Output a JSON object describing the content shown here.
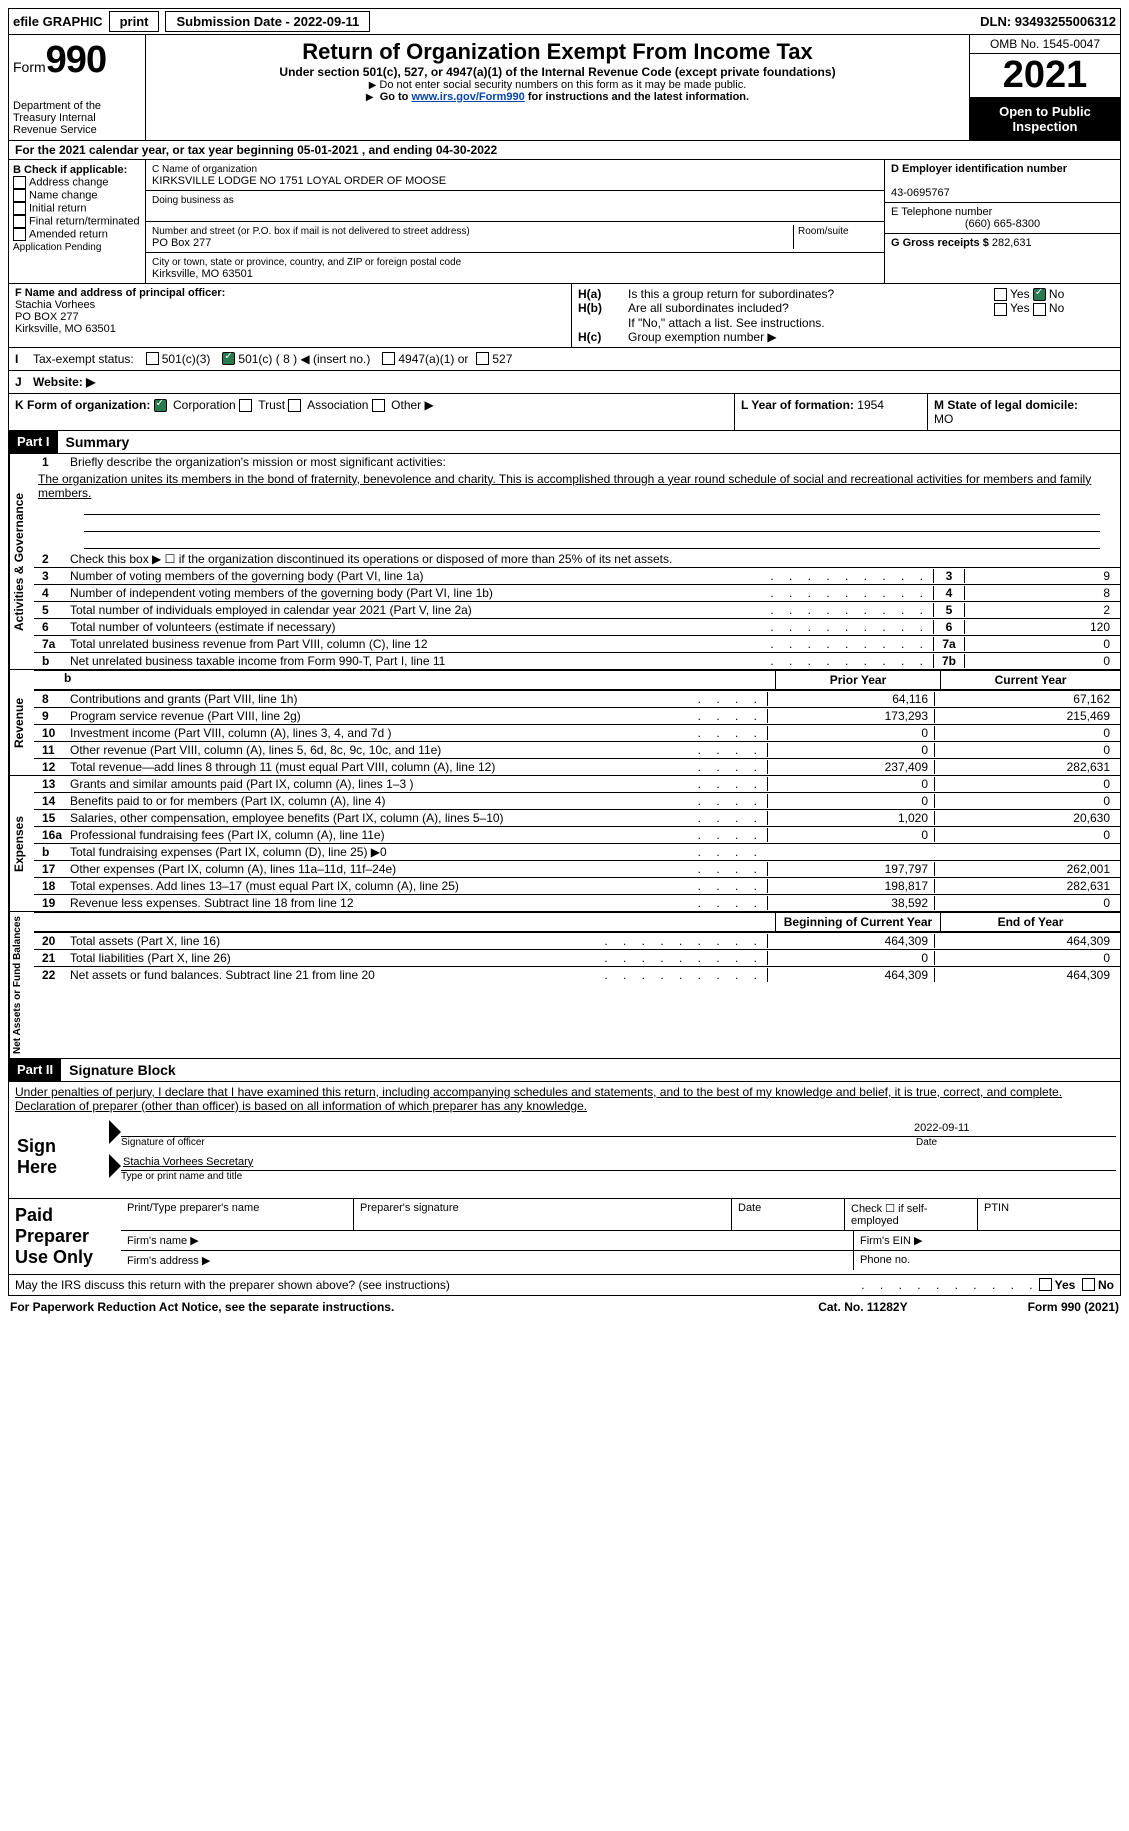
{
  "top_bar": {
    "efile": "efile GRAPHIC",
    "print": "print",
    "submission": "Submission Date - 2022-09-11",
    "dln": "DLN: 93493255006312"
  },
  "header": {
    "form": "Form",
    "num": "990",
    "dept": "Department of the Treasury Internal Revenue Service",
    "title": "Return of Organization Exempt From Income Tax",
    "subtitle": "Under section 501(c), 527, or 4947(a)(1) of the Internal Revenue Code (except private foundations)",
    "note1": "Do not enter social security numbers on this form as it may be made public.",
    "note2_prefix": "Go to ",
    "note2_link": "www.irs.gov/Form990",
    "note2_suffix": " for instructions and the latest information.",
    "omb": "OMB No. 1545-0047",
    "year": "2021",
    "open": "Open to Public Inspection"
  },
  "line_a": "For the 2021 calendar year, or tax year beginning 05-01-2021    , and ending 04-30-2022",
  "block_b": {
    "header": "B Check if applicable:",
    "items": [
      "Address change",
      "Name change",
      "Initial return",
      "Final return/terminated",
      "Amended return",
      "Application Pending"
    ]
  },
  "block_c": {
    "name_lbl": "C Name of organization",
    "name": "KIRKSVILLE LODGE NO 1751 LOYAL ORDER OF MOOSE",
    "dba_lbl": "Doing business as",
    "addr_lbl": "Number and street (or P.O. box if mail is not delivered to street address)",
    "room_lbl": "Room/suite",
    "addr": "PO Box 277",
    "city_lbl": "City or town, state or province, country, and ZIP or foreign postal code",
    "city": "Kirksville, MO  63501"
  },
  "block_d": {
    "ein_lbl": "D Employer identification number",
    "ein": "43-0695767",
    "tel_lbl": "E Telephone number",
    "tel": "(660) 665-8300",
    "gross_lbl": "G Gross receipts $",
    "gross": "282,631"
  },
  "block_f": {
    "lbl": "F Name and address of principal officer:",
    "name": "Stachia Vorhees",
    "addr1": "PO BOX 277",
    "addr2": "Kirksville, MO  63501"
  },
  "block_h": {
    "ha_lbl": "H(a)",
    "ha_txt": "Is this a group return for subordinates?",
    "hb_lbl": "H(b)",
    "hb_txt": "Are all subordinates included?",
    "hb_note": "If \"No,\" attach a list. See instructions.",
    "hc_lbl": "H(c)",
    "hc_txt": "Group exemption number ▶",
    "yes": "Yes",
    "no": "No"
  },
  "status": {
    "i": "I",
    "lbl": "Tax-exempt status:",
    "opt1": "501(c)(3)",
    "opt2": "501(c) ( 8 ) ◀ (insert no.)",
    "opt3": "4947(a)(1) or",
    "opt4": "527"
  },
  "website": {
    "j": "J",
    "lbl": "Website: ▶"
  },
  "kl": {
    "k_lbl": "K Form of organization:",
    "k_corp": "Corporation",
    "k_trust": "Trust",
    "k_assoc": "Association",
    "k_other": "Other ▶",
    "l_lbl": "L Year of formation:",
    "l_val": "1954",
    "m_lbl": "M State of legal domicile:",
    "m_val": "MO"
  },
  "part1": {
    "header": "Part I",
    "title": "Summary",
    "vlabel": "Activities & Governance",
    "l1_lbl": "1",
    "l1_txt": "Briefly describe the organization's mission or most significant activities:",
    "mission": "The organization unites its members in the bond of fraternity, benevolence and charity. This is accomplished through a year round schedule of social and recreational activities for members and family members.",
    "l2": "Check this box ▶ ☐ if the organization discontinued its operations or disposed of more than 25% of its net assets.",
    "lines": [
      {
        "n": "3",
        "d": "Number of voting members of the governing body (Part VI, line 1a)",
        "box": "3",
        "v": "9"
      },
      {
        "n": "4",
        "d": "Number of independent voting members of the governing body (Part VI, line 1b)",
        "box": "4",
        "v": "8"
      },
      {
        "n": "5",
        "d": "Total number of individuals employed in calendar year 2021 (Part V, line 2a)",
        "box": "5",
        "v": "2"
      },
      {
        "n": "6",
        "d": "Total number of volunteers (estimate if necessary)",
        "box": "6",
        "v": "120"
      },
      {
        "n": "7a",
        "d": "Total unrelated business revenue from Part VIII, column (C), line 12",
        "box": "7a",
        "v": "0"
      },
      {
        "n": "b",
        "d": "Net unrelated business taxable income from Form 990-T, Part I, line 11",
        "box": "7b",
        "v": "0"
      }
    ]
  },
  "revenue": {
    "vlabel": "Revenue",
    "prior_hdr": "Prior Year",
    "curr_hdr": "Current Year",
    "lines": [
      {
        "n": "8",
        "d": "Contributions and grants (Part VIII, line 1h)",
        "p": "64,116",
        "c": "67,162"
      },
      {
        "n": "9",
        "d": "Program service revenue (Part VIII, line 2g)",
        "p": "173,293",
        "c": "215,469"
      },
      {
        "n": "10",
        "d": "Investment income (Part VIII, column (A), lines 3, 4, and 7d )",
        "p": "0",
        "c": "0"
      },
      {
        "n": "11",
        "d": "Other revenue (Part VIII, column (A), lines 5, 6d, 8c, 9c, 10c, and 11e)",
        "p": "0",
        "c": "0"
      },
      {
        "n": "12",
        "d": "Total revenue—add lines 8 through 11 (must equal Part VIII, column (A), line 12)",
        "p": "237,409",
        "c": "282,631"
      }
    ]
  },
  "expenses": {
    "vlabel": "Expenses",
    "lines": [
      {
        "n": "13",
        "d": "Grants and similar amounts paid (Part IX, column (A), lines 1–3 )",
        "p": "0",
        "c": "0"
      },
      {
        "n": "14",
        "d": "Benefits paid to or for members (Part IX, column (A), line 4)",
        "p": "0",
        "c": "0"
      },
      {
        "n": "15",
        "d": "Salaries, other compensation, employee benefits (Part IX, column (A), lines 5–10)",
        "p": "1,020",
        "c": "20,630"
      },
      {
        "n": "16a",
        "d": "Professional fundraising fees (Part IX, column (A), line 11e)",
        "p": "0",
        "c": "0"
      },
      {
        "n": "b",
        "d": "Total fundraising expenses (Part IX, column (D), line 25) ▶0",
        "p": "",
        "c": "",
        "grey": true
      },
      {
        "n": "17",
        "d": "Other expenses (Part IX, column (A), lines 11a–11d, 11f–24e)",
        "p": "197,797",
        "c": "262,001"
      },
      {
        "n": "18",
        "d": "Total expenses. Add lines 13–17 (must equal Part IX, column (A), line 25)",
        "p": "198,817",
        "c": "282,631"
      },
      {
        "n": "19",
        "d": "Revenue less expenses. Subtract line 18 from line 12",
        "p": "38,592",
        "c": "0"
      }
    ]
  },
  "netassets": {
    "vlabel": "Net Assets or Fund Balances",
    "beg_hdr": "Beginning of Current Year",
    "end_hdr": "End of Year",
    "lines": [
      {
        "n": "20",
        "d": "Total assets (Part X, line 16)",
        "p": "464,309",
        "c": "464,309"
      },
      {
        "n": "21",
        "d": "Total liabilities (Part X, line 26)",
        "p": "0",
        "c": "0"
      },
      {
        "n": "22",
        "d": "Net assets or fund balances. Subtract line 21 from line 20",
        "p": "464,309",
        "c": "464,309"
      }
    ]
  },
  "part2": {
    "header": "Part II",
    "title": "Signature Block",
    "declaration": "Under penalties of perjury, I declare that I have examined this return, including accompanying schedules and statements, and to the best of my knowledge and belief, it is true, correct, and complete. Declaration of preparer (other than officer) is based on all information of which preparer has any knowledge.",
    "sign_here": "Sign Here",
    "sig_officer": "Signature of officer",
    "sig_date": "2022-09-11",
    "date_lbl": "Date",
    "typed_name": "Stachia Vorhees  Secretary",
    "typed_lbl": "Type or print name and title"
  },
  "paid": {
    "header": "Paid Preparer Use Only",
    "print_name": "Print/Type preparer's name",
    "prep_sig": "Preparer's signature",
    "date": "Date",
    "check_self": "Check ☐ if self-employed",
    "ptin": "PTIN",
    "firm_name": "Firm's name   ▶",
    "firm_ein": "Firm's EIN ▶",
    "firm_addr": "Firm's address ▶",
    "phone": "Phone no."
  },
  "footer": {
    "discuss": "May the IRS discuss this return with the preparer shown above? (see instructions)",
    "yes": "Yes",
    "no": "No",
    "paperwork": "For Paperwork Reduction Act Notice, see the separate instructions.",
    "cat": "Cat. No. 11282Y",
    "form": "Form 990 (2021)"
  }
}
